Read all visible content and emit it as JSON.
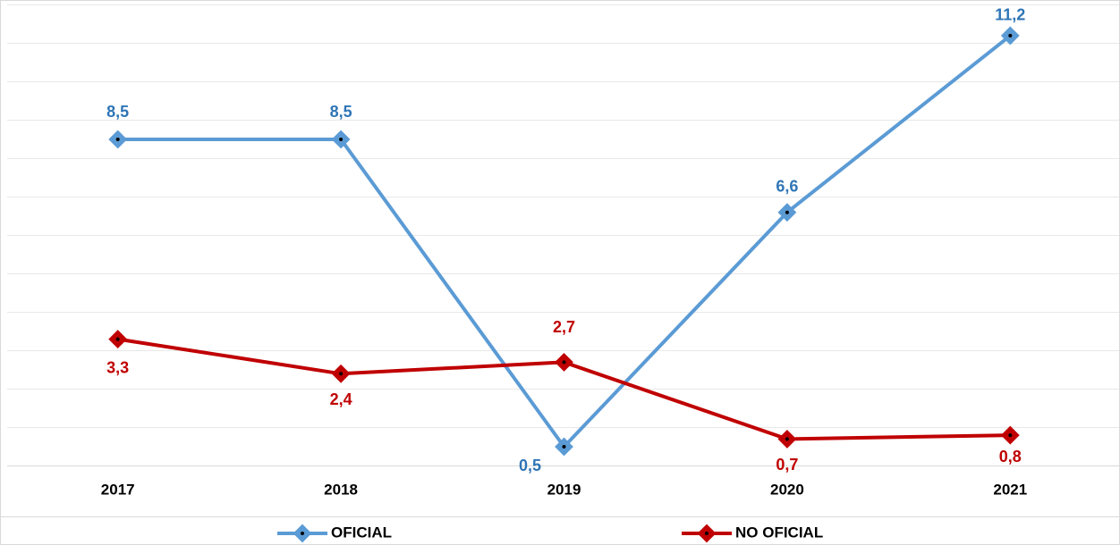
{
  "chart_data": {
    "type": "line",
    "categories": [
      "2017",
      "2018",
      "2019",
      "2020",
      "2021"
    ],
    "series": [
      {
        "name": "OFICIAL",
        "color": "#5b9bd5",
        "label_color": "#2e75b6",
        "values": [
          8.5,
          8.5,
          0.5,
          6.6,
          11.2
        ],
        "value_labels": [
          "8,5",
          "8,5",
          "0,5",
          "6,6",
          "11,2"
        ]
      },
      {
        "name": "NO OFICIAL",
        "color": "#c00000",
        "label_color": "#c00000",
        "values": [
          3.3,
          2.4,
          2.7,
          0.7,
          0.8
        ],
        "value_labels": [
          "3,3",
          "2,4",
          "2,7",
          "0,7",
          "0,8"
        ]
      }
    ],
    "ylim": [
      0,
      12
    ],
    "yticks": [
      0,
      1,
      2,
      3,
      4,
      5,
      6,
      7,
      8,
      9,
      10,
      11,
      12
    ],
    "grid": true,
    "legend": "bottom"
  }
}
